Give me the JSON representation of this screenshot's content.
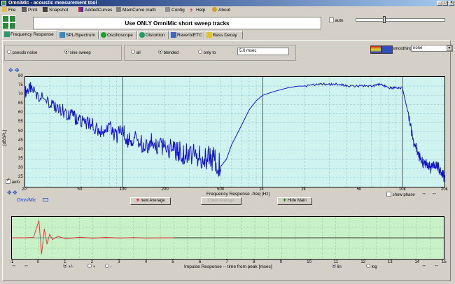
{
  "window": {
    "title": "OmniMic - acoustic measurement tool"
  },
  "menu": [
    {
      "label": "File",
      "icon": "folder-icon"
    },
    {
      "label": "Print",
      "icon": "printer-icon"
    },
    {
      "label": "Snapshot",
      "icon": "camera-icon"
    },
    {
      "label": "AddedCurves",
      "icon": "curves-icon"
    },
    {
      "label": "MainCurve math",
      "icon": "calculator-icon"
    },
    {
      "label": "Config",
      "icon": "wrench-icon"
    },
    {
      "label": "Help",
      "icon": "help-icon"
    },
    {
      "label": "About",
      "icon": "info-icon"
    }
  ],
  "banner": {
    "text": "Use ONLY OmniMic short sweep tracks"
  },
  "auto_label": "auto",
  "tabs": [
    {
      "label": "Frequency Response"
    },
    {
      "label": "SPL/Spectrum"
    },
    {
      "label": "Oscilloscope"
    },
    {
      "label": "Distortion"
    },
    {
      "label": "Reverb/ETC"
    },
    {
      "label": "Bass Decay"
    }
  ],
  "signal_options": {
    "pseudo_noise": "pseudo noise",
    "sine_sweep": "sine sweep",
    "selected": "sine sweep"
  },
  "window_options": {
    "all": "all",
    "blended": "blended",
    "only_to": "only to",
    "selected": "blended",
    "only_to_value": "5.0 msec"
  },
  "smoothing": {
    "label": "smoothing",
    "value": "none"
  },
  "freq_chart": {
    "auto_label": "auto",
    "ylabel": "[dBSPL]",
    "xlabel": "Frequency Response -freq [Hz]",
    "show_phase_label": "show phase",
    "brand": "OmniMic",
    "y_ticks": [
      "80",
      "75",
      "70",
      "65",
      "60",
      "55",
      "50",
      "45",
      "40",
      "35",
      "30",
      "25"
    ],
    "x_ticks": [
      "20",
      "50",
      "100",
      "200",
      "500",
      "1k",
      "2k",
      "5k",
      "10k",
      "20k"
    ]
  },
  "buttons": {
    "new_average": "new Average",
    "clear_average": "Clear Average",
    "hide_main": "Hide Main"
  },
  "impulse_chart": {
    "xlabel": "Impulse Response  -- time from peak [msec]",
    "x_ticks": [
      "-1",
      "0",
      "1",
      "2",
      "3",
      "4",
      "5",
      "6",
      "7",
      "8",
      "9",
      "10",
      "11",
      "12",
      "13",
      "14",
      "15"
    ],
    "polarity": {
      "plus_minus": "+/-",
      "plus": "+",
      "minus": "-",
      "selected": "+/-"
    },
    "scale": {
      "lin": "lin",
      "log": "log",
      "selected": "lin"
    }
  },
  "chart_data": [
    {
      "type": "line",
      "title": "",
      "xlabel": "Frequency Response -freq [Hz]",
      "ylabel": "[dBSPL]",
      "x_scale": "log",
      "xlim": [
        20,
        20000
      ],
      "ylim": [
        20,
        80
      ],
      "grid": true,
      "series": [
        {
          "color": "#1414c8",
          "x": [
            20,
            22,
            25,
            30,
            35,
            40,
            45,
            50,
            60,
            70,
            80,
            90,
            100,
            110,
            120,
            140,
            160,
            180,
            200,
            230,
            260,
            300,
            350,
            400,
            450,
            500,
            550,
            600,
            700,
            800,
            900,
            1000,
            1200,
            1500,
            1800,
            2000,
            2500,
            3000,
            3500,
            4000,
            5000,
            6000,
            7000,
            8000,
            9000,
            10000,
            11000,
            12000,
            13000,
            14000,
            15000,
            16000,
            17000,
            18000,
            19000,
            20000
          ],
          "y": [
            72,
            74,
            70,
            65,
            63,
            60,
            58,
            56,
            54,
            50,
            52,
            48,
            50,
            45,
            47,
            43,
            44,
            40,
            42,
            40,
            39,
            38,
            37,
            36,
            35,
            31,
            35,
            43,
            53,
            62,
            67,
            70,
            72,
            74,
            75,
            75,
            76,
            76,
            76,
            75,
            75,
            75,
            76,
            74,
            74,
            74,
            60,
            45,
            38,
            33,
            32,
            30,
            33,
            31,
            28,
            25
          ]
        }
      ]
    },
    {
      "type": "line",
      "title": "",
      "xlabel": "Impulse Response  -- time from peak [msec]",
      "xlim": [
        -1,
        15
      ],
      "ylim": [
        -1,
        1
      ],
      "grid": true,
      "series": [
        {
          "color": "#e03030",
          "x": [
            -1,
            -0.5,
            -0.2,
            0,
            0.1,
            0.2,
            0.3,
            0.4,
            0.5,
            0.7,
            1,
            1.5,
            2,
            2.5,
            3,
            3.5,
            4,
            4.5,
            5
          ],
          "y": [
            0,
            0,
            0.02,
            0.95,
            -0.9,
            0.5,
            -0.35,
            0.2,
            -0.1,
            0.08,
            -0.05,
            0.03,
            -0.02,
            0.02,
            -0.01,
            0.01,
            -0.01,
            0.005,
            0
          ]
        },
        {
          "color": "#303030",
          "x": [
            5,
            7,
            9,
            11,
            13,
            15
          ],
          "y": [
            0,
            0.005,
            -0.005,
            0.004,
            -0.004,
            0
          ]
        }
      ]
    }
  ]
}
